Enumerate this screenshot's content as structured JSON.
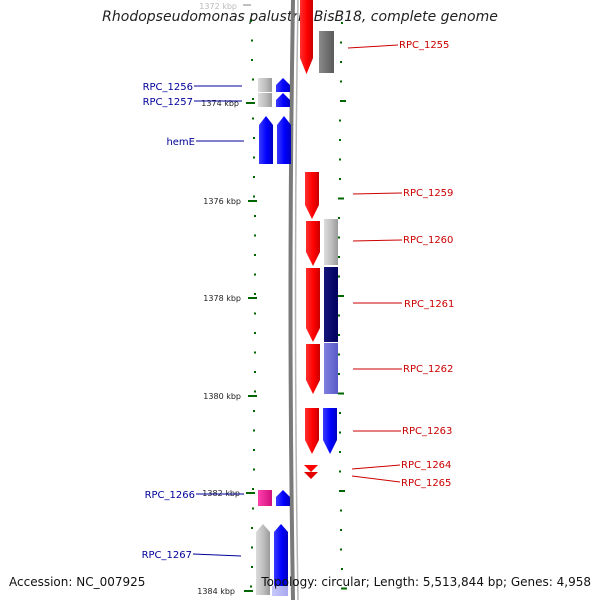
{
  "title": "Rhodopseudomonas palustris BisB18, complete genome",
  "footer": {
    "accession": "Accession: NC_007925",
    "stats": "Topology: circular; Length: 5,513,844 bp; Genes: 4,958"
  },
  "scale": {
    "unit": "kbp",
    "ticks": [
      {
        "value": 1372,
        "label": "1372 kbp"
      },
      {
        "value": 1374,
        "label": "1374 kbp"
      },
      {
        "value": 1376,
        "label": "1376 kbp"
      },
      {
        "value": 1378,
        "label": "1378 kbp"
      },
      {
        "value": 1380,
        "label": "1380 kbp"
      },
      {
        "value": 1382,
        "label": "1382 kbp"
      },
      {
        "value": 1384,
        "label": "1384 kbp"
      }
    ]
  },
  "genes": [
    {
      "name": "RPC_1255",
      "strand": "+",
      "label_color": "#cc0000"
    },
    {
      "name": "RPC_1256",
      "strand": "-",
      "label_color": "#000099"
    },
    {
      "name": "RPC_1257",
      "strand": "-",
      "label_color": "#000099"
    },
    {
      "name": "hemE",
      "strand": "-",
      "label_color": "#000099"
    },
    {
      "name": "RPC_1259",
      "strand": "+",
      "label_color": "#cc0000"
    },
    {
      "name": "RPC_1260",
      "strand": "+",
      "label_color": "#cc0000"
    },
    {
      "name": "RPC_1261",
      "strand": "+",
      "label_color": "#cc0000"
    },
    {
      "name": "RPC_1262",
      "strand": "+",
      "label_color": "#cc0000"
    },
    {
      "name": "RPC_1263",
      "strand": "+",
      "label_color": "#cc0000"
    },
    {
      "name": "RPC_1264",
      "strand": "+",
      "label_color": "#cc0000"
    },
    {
      "name": "RPC_1265",
      "strand": "+",
      "label_color": "#cc0000"
    },
    {
      "name": "RPC_1266",
      "strand": "-",
      "label_color": "#000099"
    },
    {
      "name": "RPC_1267",
      "strand": "-",
      "label_color": "#000099"
    }
  ],
  "colors": {
    "forward_strand": "#ff0000",
    "reverse_strand": "#0000ff",
    "backbone": "#808080",
    "tick": "#006600"
  }
}
